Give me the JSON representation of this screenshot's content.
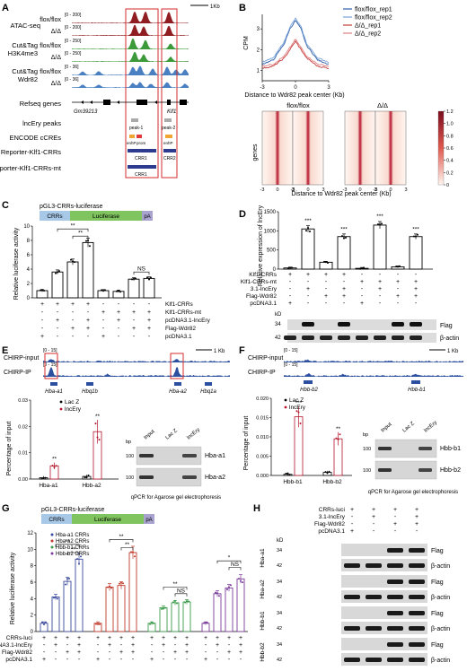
{
  "panels": {
    "A": {
      "letter": "A",
      "scale_bar": "1Kb",
      "tracks": [
        {
          "group": "ATAC-seq",
          "genotype": "flox/flox",
          "range": "[0 - 200]",
          "color": "#8f1d22"
        },
        {
          "genotype": "Δ/Δ",
          "range": "[0 - 200]",
          "color": "#8f1d22"
        },
        {
          "group": "Cut&Tag",
          "group2": "H3K4me3",
          "genotype": "flox/flox",
          "range": "[0 - 250]",
          "color": "#3d9a3a"
        },
        {
          "genotype": "Δ/Δ",
          "range": "[0 - 250]",
          "color": "#3d9a3a"
        },
        {
          "group": "Cut&Tag",
          "group2": "Wdr82",
          "genotype": "flox/flox",
          "range": "[0 - 36]",
          "color": "#4a7fc1"
        },
        {
          "genotype": "Δ/Δ",
          "range": "[0 - 36]",
          "color": "#4a7fc1"
        }
      ],
      "refseq_label": "Refseq genes",
      "gene_left": "Gm39213",
      "gene_right": "Klf1",
      "lncery_label": "lncEry peaks",
      "peak1": "peak-1",
      "peak2": "peak-2",
      "encode_label": "ENCODE cCREs",
      "encode_tags": [
        "enhP",
        "prom",
        "enhP"
      ],
      "reporter_label": "Reporter-Klf1-CRRs",
      "reporter_mt_label": "Reporter-Klf1-CRRs-mt",
      "crr1": "CRR1",
      "crr2": "CRR2"
    },
    "B": {
      "letter": "B",
      "ylabel": "CPM",
      "xlabel": "Distance to Wdr82 peak center (Kb)",
      "heat_xlabel": "Distance to Wdr82 peak center (Kb)",
      "heat_ylabel": "genes",
      "heat_titles": [
        "flox/flox",
        "Δ/Δ"
      ],
      "heat_ticks": [
        "-3",
        "0",
        "3",
        "-3",
        "0",
        "3",
        "-3",
        "0",
        "3",
        "-3",
        "0",
        "3"
      ],
      "colorbar_ticks": [
        "1.2",
        "1.0",
        "0.8",
        "0.6",
        "0.4",
        "0.2",
        "0"
      ],
      "chart_data": {
        "type": "line",
        "x": [
          -3,
          -2,
          -1,
          -0.5,
          0,
          0.5,
          1,
          2,
          3
        ],
        "series": [
          {
            "name": "flox/flox_rep1",
            "values": [
              1.3,
              1.5,
              2.3,
              3.0,
              3.4,
              3.0,
              2.2,
              1.5,
              1.3
            ],
            "color": "#2e5ea8"
          },
          {
            "name": "flox/flox_rep2",
            "values": [
              1.4,
              1.6,
              2.4,
              3.1,
              3.5,
              3.1,
              2.3,
              1.6,
              1.4
            ],
            "color": "#7aa3d8"
          },
          {
            "name": "Δ/Δ_rep1",
            "values": [
              1.1,
              1.2,
              1.6,
              2.0,
              2.4,
              2.0,
              1.6,
              1.2,
              1.1
            ],
            "color": "#c43b3b"
          },
          {
            "name": "Δ/Δ_rep2",
            "values": [
              1.2,
              1.3,
              1.7,
              2.1,
              2.5,
              2.1,
              1.7,
              1.3,
              1.2
            ],
            "color": "#e08080"
          }
        ],
        "yticks": [
          "1",
          "2",
          "3"
        ],
        "xticks": [
          "-3",
          "0",
          "3"
        ],
        "ylim": [
          0.5,
          3.7
        ]
      }
    },
    "C": {
      "letter": "C",
      "construct": {
        "crrs": "CRRs",
        "luc": "Luciferase",
        "pa": "pA",
        "name": "pGL3-CRRs-luciferase"
      },
      "ylabel": "Relative luciferase activity",
      "yticks": [
        "0",
        "2",
        "4",
        "6",
        "8",
        "10"
      ],
      "row_labels": [
        "Klf1-CRRs",
        "Klf1-CRRs-mt",
        "pcDNA3.1-lncEry",
        "Flag-Wdr82",
        "pcDNA3.1"
      ],
      "signs": [
        [
          "+",
          "+",
          "+",
          "+",
          "-",
          "-",
          "-",
          "-"
        ],
        [
          "-",
          "-",
          "-",
          "-",
          "+",
          "+",
          "+",
          "+"
        ],
        [
          "-",
          "+",
          "-",
          "+",
          "-",
          "+",
          "-",
          "+"
        ],
        [
          "-",
          "-",
          "+",
          "+",
          "-",
          "-",
          "+",
          "+"
        ],
        [
          "+",
          "-",
          "-",
          "-",
          "+",
          "-",
          "-",
          "-"
        ]
      ],
      "sig": [
        "**",
        "**",
        "NS"
      ],
      "chart_data": {
        "type": "bar",
        "categories": [
          "1",
          "2",
          "3",
          "4",
          "5",
          "6",
          "7",
          "8"
        ],
        "values": [
          1.0,
          3.6,
          5.0,
          7.7,
          1.0,
          0.9,
          2.6,
          2.7
        ],
        "ylim": [
          0,
          10
        ]
      }
    },
    "D": {
      "letter": "D",
      "ylabel": "Relative expression of lncEry",
      "yticks": [
        "0",
        "500",
        "1000",
        "1500"
      ],
      "row_labels": [
        "Klf1-CRRs",
        "Klf1-CRRs-mt",
        "3.1-lncEry",
        "Flag-Wdr82",
        "pcDNA3.1"
      ],
      "signs": [
        [
          "+",
          "+",
          "+",
          "+",
          "-",
          "-",
          "-",
          "-"
        ],
        [
          "-",
          "-",
          "-",
          "-",
          "+",
          "+",
          "+",
          "+"
        ],
        [
          "-",
          "+",
          "-",
          "+",
          "-",
          "+",
          "-",
          "+"
        ],
        [
          "-",
          "-",
          "+",
          "+",
          "-",
          "-",
          "+",
          "+"
        ],
        [
          "+",
          "-",
          "-",
          "-",
          "+",
          "-",
          "-",
          "-"
        ]
      ],
      "sig": [
        "***",
        "***",
        "***",
        "***"
      ],
      "kd": "kD",
      "blot_labels": [
        "Flag",
        "β-actin"
      ],
      "mw": [
        "34",
        "42"
      ],
      "chart_data": {
        "type": "bar",
        "categories": [
          "1",
          "2",
          "3",
          "4",
          "5",
          "6",
          "7",
          "8"
        ],
        "values": [
          30,
          1050,
          180,
          850,
          20,
          1150,
          60,
          850
        ],
        "ylim": [
          0,
          1500
        ]
      }
    },
    "E": {
      "letter": "E",
      "scale_bar": "1 Kb",
      "tracks": [
        {
          "name": "CHIRP-input",
          "range": "[0 - 15]"
        },
        {
          "name": "CHIRP-IP",
          "range": "[0 - 15]"
        }
      ],
      "genes": [
        "Hba-a1",
        "Hbq1b",
        "Hba-a2",
        "Hbq1a"
      ],
      "legend": [
        "Lac Z",
        "lncEry"
      ],
      "ylabel": "Percentage of input",
      "yticks": [
        "0.00",
        "0.01",
        "0.02",
        "0.03"
      ],
      "categories": [
        "Hba-a1",
        "Hbb-a2"
      ],
      "sig": [
        "**",
        "**"
      ],
      "gel_headers": [
        "Input",
        "Lac Z",
        "lncEry"
      ],
      "gel_bp": [
        "bp",
        "100",
        "100"
      ],
      "gel_labels": [
        "Hba-a1",
        "Hba-a2"
      ],
      "gel_caption": "qPCR for Agarose gel electrophoresis",
      "chart_data": {
        "type": "bar",
        "categories": [
          "Hba-a1",
          "Hbb-a2"
        ],
        "series": [
          {
            "name": "Lac Z",
            "values": [
              0.0005,
              0.001
            ]
          },
          {
            "name": "lncEry",
            "values": [
              0.005,
              0.018
            ]
          }
        ],
        "ylim": [
          0,
          0.03
        ]
      }
    },
    "F": {
      "letter": "F",
      "scale_bar": "1 Kb",
      "tracks": [
        {
          "name": "CHIRP-input",
          "range": "[0 - 15]"
        },
        {
          "name": "CHIRP-IP",
          "range": "[0 - 15]"
        }
      ],
      "genes": [
        "Hbb-b2",
        "Hbb-b1"
      ],
      "legend": [
        "Lac Z",
        "lncEry"
      ],
      "ylabel": "Percentage of input",
      "yticks": [
        "0.000",
        "0.005",
        "0.010",
        "0.015",
        "0.020"
      ],
      "categories": [
        "Hbb-b1",
        "Hbb-b2"
      ],
      "sig": [
        "***",
        "**"
      ],
      "gel_headers": [
        "Input",
        "Lac Z",
        "lncEry"
      ],
      "gel_bp": [
        "bp",
        "100",
        "100"
      ],
      "gel_labels": [
        "Hbb-b1",
        "Hbb-b2"
      ],
      "gel_caption": "qPCR for Agarose gel electrophoresis",
      "chart_data": {
        "type": "bar",
        "categories": [
          "Hbb-b1",
          "Hbb-b2"
        ],
        "series": [
          {
            "name": "Lac Z",
            "values": [
              0.0003,
              0.0008
            ]
          },
          {
            "name": "lncEry",
            "values": [
              0.0152,
              0.0095
            ]
          }
        ],
        "ylim": [
          0,
          0.02
        ]
      }
    },
    "G": {
      "letter": "G",
      "construct": {
        "crrs": "CRRs",
        "luc": "Luciferase",
        "pa": "pA",
        "name": "pGL3-CRRs-luciferase"
      },
      "ylabel": "Relative luciferase activity",
      "yticks": [
        "0",
        "2",
        "4",
        "6",
        "8",
        "10",
        "12"
      ],
      "legend": [
        {
          "name": "Hba-a1 CRRs",
          "color": "#3b4a9c"
        },
        {
          "name": "Hba-a2 CRRs",
          "color": "#c0392b"
        },
        {
          "name": "Hbb-b1 CRRs",
          "color": "#3a9a4a"
        },
        {
          "name": "Hbb-b2 CRRs",
          "color": "#7a3c9a"
        }
      ],
      "row_labels": [
        "CRRs-luci",
        "pcDNA3.1-lncEry",
        "Flag-Wdr82",
        "pcDNA3.1"
      ],
      "signs": [
        [
          "+",
          "+",
          "+",
          "+",
          "+",
          "+",
          "+",
          "+",
          "+",
          "+",
          "+",
          "+",
          "+",
          "+",
          "+",
          "+"
        ],
        [
          "-",
          "+",
          "-",
          "+",
          "-",
          "+",
          "-",
          "+",
          "-",
          "+",
          "-",
          "+",
          "-",
          "+",
          "-",
          "+"
        ],
        [
          "-",
          "-",
          "+",
          "+",
          "-",
          "-",
          "+",
          "+",
          "-",
          "-",
          "+",
          "+",
          "-",
          "-",
          "+",
          "+"
        ],
        [
          "+",
          "-",
          "-",
          "-",
          "+",
          "-",
          "-",
          "-",
          "+",
          "-",
          "-",
          "-",
          "+",
          "-",
          "-",
          "-"
        ]
      ],
      "sig": [
        "**",
        "**",
        "**",
        "**",
        "**",
        "NS",
        "*",
        "NS"
      ],
      "chart_data": {
        "type": "bar",
        "categories": [
          "1",
          "2",
          "3",
          "4",
          "5",
          "6",
          "7",
          "8",
          "9",
          "10",
          "11",
          "12",
          "13",
          "14",
          "15",
          "16"
        ],
        "values": [
          1.0,
          4.2,
          6.1,
          8.8,
          1.0,
          5.4,
          5.6,
          9.6,
          1.0,
          2.9,
          3.5,
          3.6,
          1.0,
          4.6,
          5.3,
          6.4
        ],
        "ylim": [
          0,
          12
        ]
      }
    },
    "H": {
      "letter": "H",
      "header_labels": [
        "CRRs-luci",
        "3.1-lncEry",
        "Flag-Wdr82",
        "pcDNA3.1"
      ],
      "header_signs": [
        [
          "+",
          "+",
          "+",
          "+"
        ],
        [
          "-",
          "+",
          "-",
          "+"
        ],
        [
          "-",
          "-",
          "+",
          "+"
        ],
        [
          "+",
          "-",
          "-",
          "-"
        ]
      ],
      "groups": [
        "Hba-a1",
        "Hba-a2",
        "Hbb-b1",
        "Hbb-b2"
      ],
      "kd": "kD",
      "blot_labels": [
        "Flag",
        "β-actin"
      ],
      "mw": [
        "34",
        "42"
      ]
    }
  }
}
